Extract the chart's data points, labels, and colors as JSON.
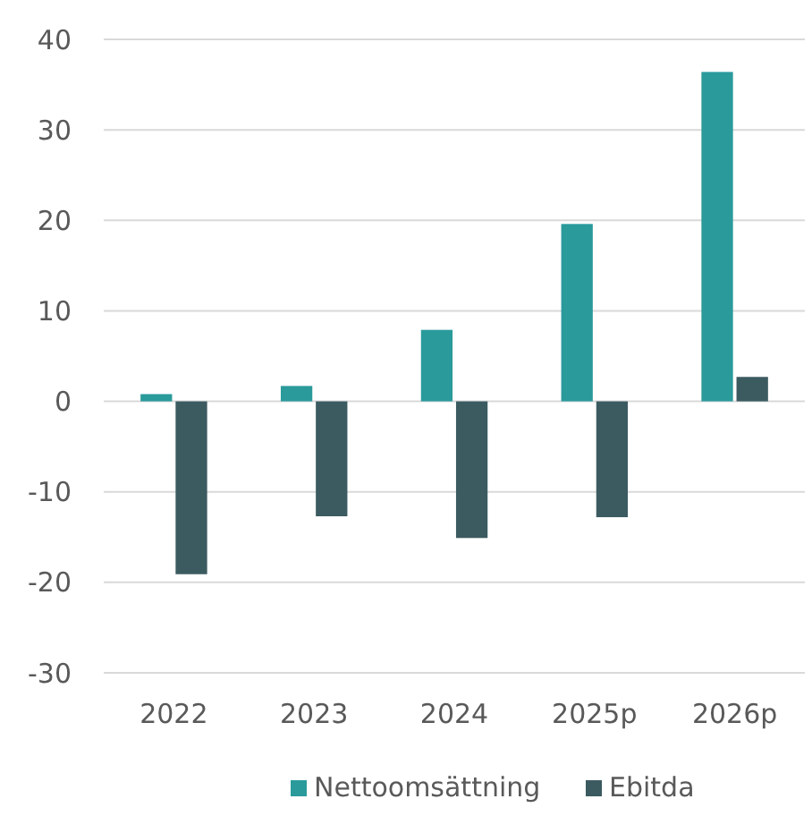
{
  "chart_data": {
    "type": "bar",
    "categories": [
      "2022",
      "2023",
      "2024",
      "2025p",
      "2026p"
    ],
    "series": [
      {
        "name": "Nettoomsättning",
        "color": "#2a9a9b",
        "values": [
          0.8,
          1.7,
          7.9,
          19.6,
          36.4
        ]
      },
      {
        "name": "Ebitda",
        "color": "#3b5b60",
        "values": [
          -19.1,
          -12.7,
          -15.1,
          -12.8,
          2.7
        ]
      }
    ],
    "ylim": [
      -30,
      40
    ],
    "yticks": [
      -30,
      -20,
      -10,
      0,
      10,
      20,
      30,
      40
    ],
    "grid": "y",
    "legend": "bottom"
  }
}
